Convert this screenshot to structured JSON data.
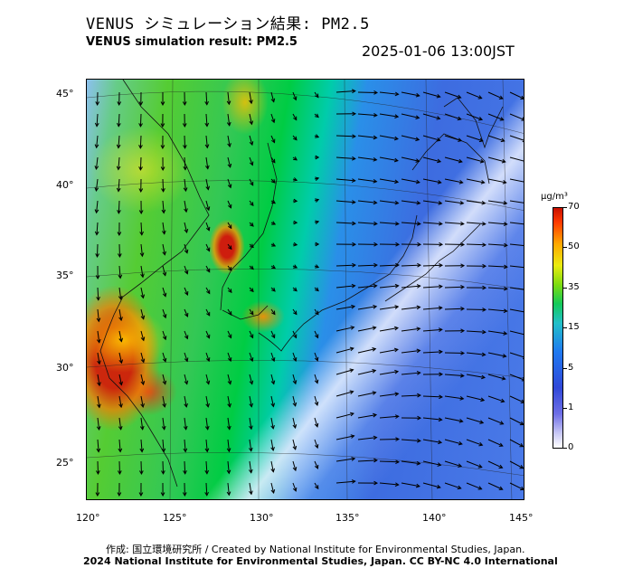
{
  "header": {
    "title_jp": "VENUS シミュレーション結果: PM2.5",
    "title_en": "VENUS simulation result: PM2.5",
    "timestamp": "2025-01-06 13:00JST"
  },
  "map": {
    "lat_labels": [
      "45°",
      "40°",
      "35°",
      "30°",
      "25°"
    ],
    "lon_labels": [
      "120°",
      "125°",
      "130°",
      "135°",
      "140°",
      "145°"
    ]
  },
  "colorbar": {
    "unit": "μg/m³",
    "ticks": [
      "70",
      "50",
      "35",
      "15",
      "5",
      "1",
      "0"
    ]
  },
  "footer": {
    "credit": "作成: 国立環境研究所 / Created by National Institute for Environmental Studies, Japan.",
    "license": "2024 National Institute for Environmental Studies, Japan. CC BY-NC 4.0 International"
  }
}
